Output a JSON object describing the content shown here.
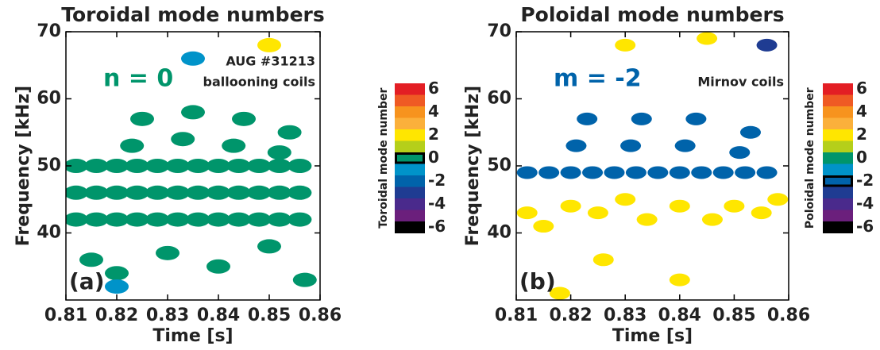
{
  "chart_data": [
    {
      "type": "spectrogram",
      "title": "Toroidal mode numbers",
      "xlabel": "Time [s]",
      "ylabel": "Frequency [kHz]",
      "xlim": [
        0.81,
        0.86
      ],
      "ylim": [
        30,
        70
      ],
      "xticks": [
        0.81,
        0.82,
        0.83,
        0.84,
        0.85,
        0.86
      ],
      "yticks": [
        40,
        50,
        60,
        70
      ],
      "mode_label": "n = 0",
      "panel_label": "(a)",
      "notes": [
        "AUG #31213",
        "ballooning coils"
      ],
      "colorbar": {
        "label": "Toroidal mode number",
        "levels": [
          6,
          5,
          4,
          3,
          2,
          1,
          0,
          -1,
          -2,
          -3,
          -4,
          -5,
          -6
        ],
        "colors": [
          "#e31e24",
          "#ef5a24",
          "#f7931e",
          "#fbb03b",
          "#ffe600",
          "#b5cf1a",
          "#00956b",
          "#0093c9",
          "#0063aa",
          "#1f3c92",
          "#4a2a8c",
          "#6b1f7c",
          "#000000"
        ],
        "ticks": [
          6,
          4,
          2,
          0,
          -2,
          -4,
          -6
        ],
        "highlight": 0
      },
      "points": {
        "x": [
          0.812,
          0.816,
          0.82,
          0.824,
          0.828,
          0.832,
          0.836,
          0.84,
          0.844,
          0.848,
          0.852,
          0.856,
          0.812,
          0.816,
          0.82,
          0.824,
          0.828,
          0.832,
          0.836,
          0.84,
          0.844,
          0.848,
          0.852,
          0.856,
          0.812,
          0.816,
          0.82,
          0.824,
          0.828,
          0.832,
          0.836,
          0.84,
          0.844,
          0.848,
          0.852,
          0.856,
          0.823,
          0.825,
          0.833,
          0.835,
          0.843,
          0.845,
          0.852,
          0.854,
          0.815,
          0.82,
          0.83,
          0.84,
          0.85,
          0.857,
          0.835,
          0.85,
          0.82
        ],
        "y": [
          42,
          42,
          42,
          42,
          42,
          42,
          42,
          42,
          42,
          42,
          42,
          42,
          46,
          46,
          46,
          46,
          46,
          46,
          46,
          46,
          46,
          46,
          46,
          46,
          50,
          50,
          50,
          50,
          50,
          50,
          50,
          50,
          50,
          50,
          50,
          50,
          53,
          57,
          54,
          58,
          53,
          57,
          52,
          55,
          36,
          34,
          37,
          35,
          38,
          33,
          66,
          68,
          32
        ],
        "mode": [
          0,
          0,
          0,
          0,
          0,
          0,
          0,
          0,
          0,
          0,
          0,
          0,
          0,
          0,
          0,
          0,
          0,
          0,
          0,
          0,
          0,
          0,
          0,
          0,
          0,
          0,
          0,
          0,
          0,
          0,
          0,
          0,
          0,
          0,
          0,
          0,
          0,
          0,
          0,
          0,
          0,
          0,
          0,
          0,
          0,
          0,
          0,
          0,
          0,
          0,
          -1,
          2,
          -1
        ]
      }
    },
    {
      "type": "spectrogram",
      "title": "Poloidal mode numbers",
      "xlabel": "Time [s]",
      "ylabel": "Frequency [kHz]",
      "xlim": [
        0.81,
        0.86
      ],
      "ylim": [
        30,
        70
      ],
      "xticks": [
        0.81,
        0.82,
        0.83,
        0.84,
        0.85,
        0.86
      ],
      "yticks": [
        40,
        50,
        60,
        70
      ],
      "mode_label": "m = -2",
      "panel_label": "(b)",
      "notes": [
        "Mirnov coils"
      ],
      "colorbar": {
        "label": "Poloidal mode number",
        "levels": [
          6,
          5,
          4,
          3,
          2,
          1,
          0,
          -1,
          -2,
          -3,
          -4,
          -5,
          -6
        ],
        "colors": [
          "#e31e24",
          "#ef5a24",
          "#f7931e",
          "#fbb03b",
          "#ffe600",
          "#b5cf1a",
          "#00956b",
          "#0093c9",
          "#0063aa",
          "#1f3c92",
          "#4a2a8c",
          "#6b1f7c",
          "#000000"
        ],
        "ticks": [
          6,
          4,
          2,
          0,
          -2,
          -4,
          -6
        ],
        "highlight": -2
      },
      "points": {
        "x": [
          0.812,
          0.816,
          0.82,
          0.824,
          0.828,
          0.832,
          0.836,
          0.84,
          0.844,
          0.848,
          0.852,
          0.856,
          0.821,
          0.823,
          0.831,
          0.833,
          0.841,
          0.843,
          0.851,
          0.853,
          0.812,
          0.815,
          0.82,
          0.825,
          0.83,
          0.834,
          0.84,
          0.846,
          0.85,
          0.855,
          0.858,
          0.826,
          0.84,
          0.818,
          0.83,
          0.845,
          0.856
        ],
        "y": [
          49,
          49,
          49,
          49,
          49,
          49,
          49,
          49,
          49,
          49,
          49,
          49,
          53,
          57,
          53,
          57,
          53,
          57,
          52,
          55,
          43,
          41,
          44,
          43,
          45,
          42,
          44,
          42,
          44,
          43,
          45,
          36,
          33,
          31,
          68,
          69,
          68
        ],
        "mode": [
          -2,
          -2,
          -2,
          -2,
          -2,
          -2,
          -2,
          -2,
          -2,
          -2,
          -2,
          -2,
          -2,
          -2,
          -2,
          -2,
          -2,
          -2,
          -2,
          -2,
          2,
          2,
          2,
          2,
          2,
          2,
          2,
          2,
          2,
          2,
          2,
          2,
          2,
          2,
          2,
          2,
          -3
        ]
      }
    }
  ]
}
